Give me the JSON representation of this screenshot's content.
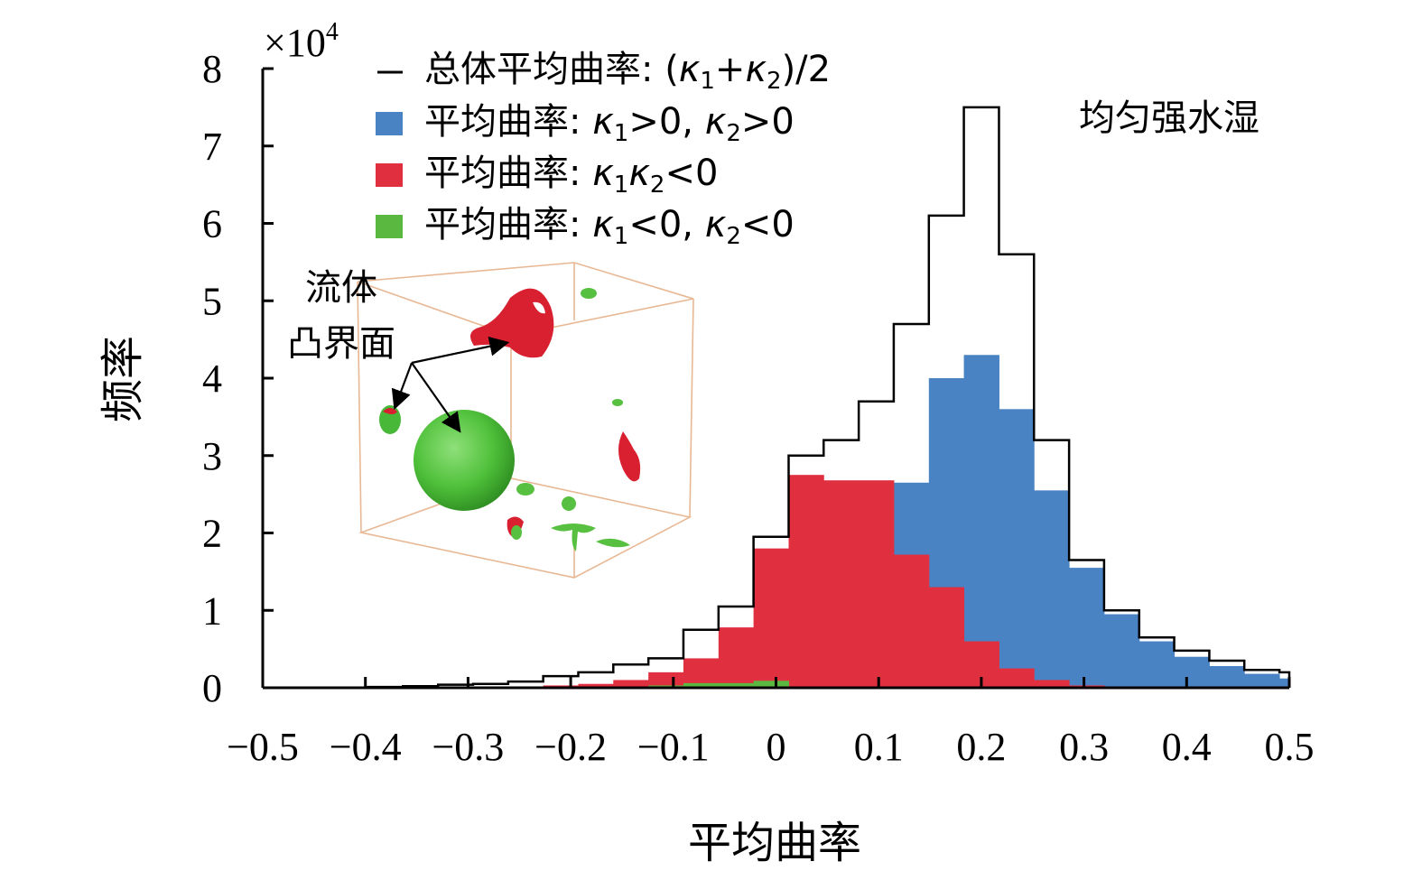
{
  "chart_data": {
    "type": "bar",
    "xlabel": "平均曲率",
    "ylabel": "频率",
    "y_multiplier": "×10",
    "y_multiplier_exp": "4",
    "annotation_top_right": "均匀强水湿",
    "inset_annotation_line1": "流体",
    "inset_annotation_line2": "凸界面",
    "xlim": [
      -0.5,
      0.5
    ],
    "ylim": [
      0,
      8
    ],
    "x_ticks": [
      "−0.5",
      "−0.4",
      "−0.3",
      "−0.2",
      "−0.1",
      "0",
      "0.1",
      "0.2",
      "0.3",
      "0.4",
      "0.5"
    ],
    "x_tick_values": [
      -0.5,
      -0.4,
      -0.3,
      -0.2,
      -0.1,
      0,
      0.1,
      0.2,
      0.3,
      0.4,
      0.5
    ],
    "y_ticks": [
      "0",
      "1",
      "2",
      "3",
      "4",
      "5",
      "6",
      "7",
      "8"
    ],
    "y_tick_values": [
      0,
      1,
      2,
      3,
      4,
      5,
      6,
      7,
      8
    ],
    "bin_edges": [
      -0.5,
      -0.4658,
      -0.4317,
      -0.3975,
      -0.3634,
      -0.3292,
      -0.2951,
      -0.2609,
      -0.2268,
      -0.1926,
      -0.1585,
      -0.1243,
      -0.0902,
      -0.056,
      -0.0219,
      0.0123,
      0.0464,
      0.0806,
      0.1147,
      0.1489,
      0.183,
      0.2172,
      0.2513,
      0.2855,
      0.3196,
      0.3538,
      0.3879,
      0.4221,
      0.4562,
      0.4904,
      0.5
    ],
    "series": [
      {
        "name": "总体平均曲率: (κ1+κ2)/2",
        "style": "step-outline",
        "color": "#000000",
        "values": [
          0.0,
          0.0,
          0.0,
          0.01,
          0.02,
          0.04,
          0.05,
          0.08,
          0.15,
          0.2,
          0.3,
          0.38,
          0.75,
          1.05,
          1.95,
          3.0,
          3.2,
          3.7,
          4.7,
          6.1,
          7.5,
          5.6,
          3.2,
          1.65,
          1.0,
          0.65,
          0.48,
          0.35,
          0.23,
          0.2
        ]
      },
      {
        "name": "平均曲率: κ1>0, κ2>0",
        "style": "filled",
        "color": "#4a83c4",
        "values": [
          0,
          0,
          0,
          0,
          0,
          0,
          0,
          0,
          0,
          0,
          0,
          0,
          0,
          0,
          0,
          0,
          0,
          0,
          2.65,
          4.0,
          4.3,
          3.6,
          2.55,
          1.55,
          0.95,
          0.6,
          0.4,
          0.28,
          0.18,
          0.12
        ]
      },
      {
        "name": "平均曲率: κ1κ2<0",
        "style": "filled",
        "color": "#e03040",
        "values": [
          0,
          0,
          0,
          0,
          0,
          0,
          0,
          0,
          0.03,
          0.05,
          0.1,
          0.2,
          0.38,
          0.78,
          1.8,
          2.75,
          2.68,
          2.68,
          1.72,
          1.3,
          0.6,
          0.25,
          0.1,
          0.03,
          0,
          0,
          0,
          0,
          0,
          0
        ]
      },
      {
        "name": "平均曲率: κ1<0, κ2<0",
        "style": "filled",
        "color": "#5ab840",
        "values": [
          0,
          0,
          0,
          0,
          0,
          0,
          0,
          0,
          0,
          0,
          0,
          0.03,
          0.06,
          0.06,
          0.09,
          0,
          0,
          0,
          0,
          0,
          0,
          0,
          0,
          0,
          0,
          0,
          0,
          0,
          0,
          0
        ]
      }
    ],
    "legend_placement": "top-left",
    "grid": false,
    "inset_box_color": "#e8b894"
  }
}
